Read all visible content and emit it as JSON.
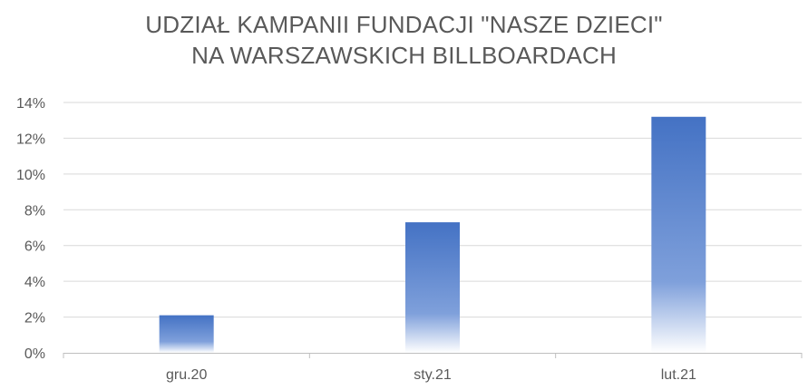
{
  "chart_data": {
    "type": "bar",
    "title_lines": [
      "UDZIAŁ KAMPANII FUNDACJI \"NASZE DZIECI\"",
      "NA WARSZAWSKICH BILLBOARDACH"
    ],
    "categories": [
      "gru.20",
      "sty.21",
      "lut.21"
    ],
    "values": [
      0.021,
      0.073,
      0.132
    ],
    "ylim": [
      0,
      0.14
    ],
    "yticks": [
      0,
      0.02,
      0.04,
      0.06,
      0.08,
      0.1,
      0.12,
      0.14
    ],
    "ytick_labels": [
      "0%",
      "2%",
      "4%",
      "6%",
      "8%",
      "10%",
      "12%",
      "14%"
    ],
    "grid": true,
    "bar_color": "#4472C4"
  }
}
